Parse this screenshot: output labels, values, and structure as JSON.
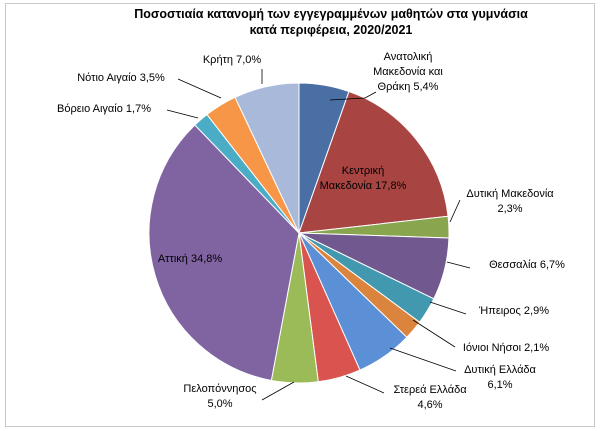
{
  "chart_data": {
    "type": "pie",
    "title_line1": "Ποσοστιαία κατανομή των εγγεγραμμένων μαθητών στα γυμνάσια",
    "title_line2": "κατά περιφέρεια, 2020/2021",
    "slices": [
      {
        "lines": [
          "Ανατολική",
          "Μακεδονία και",
          "Θράκη 5,4%"
        ],
        "value": 5.4,
        "color": "#4a6fa5"
      },
      {
        "lines": [
          "Κεντρική",
          "Μακεδονία 17,8%"
        ],
        "value": 17.8,
        "color": "#a84543"
      },
      {
        "lines": [
          "Δυτική Μακεδονία",
          "2,3%"
        ],
        "value": 2.3,
        "color": "#89a54e"
      },
      {
        "lines": [
          "Θεσσαλία 6,7%"
        ],
        "value": 6.7,
        "color": "#71588f"
      },
      {
        "lines": [
          "Ήπειρος 2,9%"
        ],
        "value": 2.9,
        "color": "#4198af"
      },
      {
        "lines": [
          "Ιόνιοι Νήσοι 2,1%"
        ],
        "value": 2.1,
        "color": "#db843d"
      },
      {
        "lines": [
          "Δυτική Ελλάδα",
          "6,1%"
        ],
        "value": 6.1,
        "color": "#5b8fd6"
      },
      {
        "lines": [
          "Στερεά Ελλάδα",
          "4,6%"
        ],
        "value": 4.6,
        "color": "#d9534f"
      },
      {
        "lines": [
          "Πελοπόννησος",
          "5,0%"
        ],
        "value": 5.0,
        "color": "#9bbb59"
      },
      {
        "lines": [
          "Αττική 34,8%"
        ],
        "value": 34.8,
        "color": "#8064a2"
      },
      {
        "lines": [
          "Βόρειο Αιγαίο 1,7%"
        ],
        "value": 1.7,
        "color": "#4bacc6"
      },
      {
        "lines": [
          "Νότιο Αιγαίο 3,5%"
        ],
        "value": 3.5,
        "color": "#f79646"
      },
      {
        "lines": [
          "Κρήτη 7,0%"
        ],
        "value": 7.0,
        "color": "#a9b9d9"
      }
    ]
  }
}
